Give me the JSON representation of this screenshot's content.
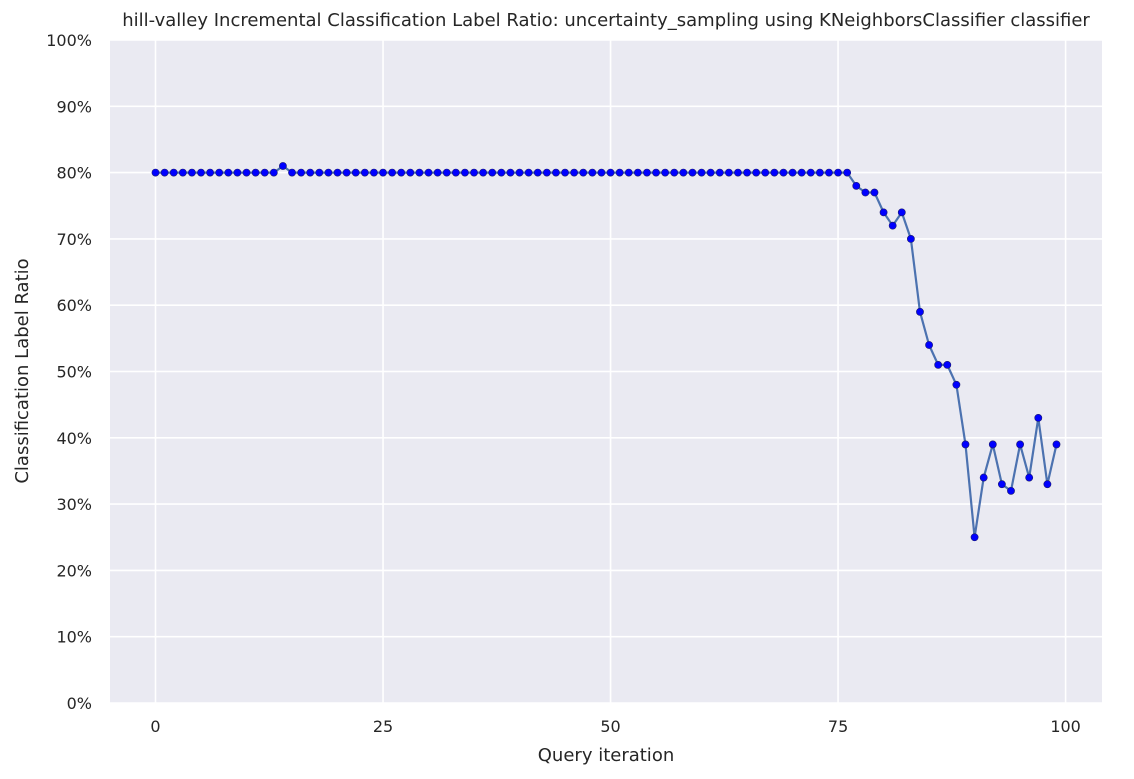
{
  "chart_data": {
    "type": "line",
    "title": "hill-valley Incremental Classification Label Ratio: uncertainty_sampling using KNeighborsClassifier classifier",
    "xlabel": "Query iteration",
    "ylabel": "Classification Label Ratio",
    "xlim": [
      -5,
      104
    ],
    "ylim": [
      0,
      1
    ],
    "xticks": [
      0,
      25,
      50,
      75,
      100
    ],
    "xtick_labels": [
      "0",
      "25",
      "50",
      "75",
      "100"
    ],
    "yticks": [
      0,
      0.1,
      0.2,
      0.3,
      0.4,
      0.5,
      0.6,
      0.7,
      0.8,
      0.9,
      1.0
    ],
    "ytick_labels": [
      "0%",
      "10%",
      "20%",
      "30%",
      "40%",
      "50%",
      "60%",
      "70%",
      "80%",
      "90%",
      "100%"
    ],
    "grid": true,
    "line_color": "#4c72b0",
    "marker_color": "#0000ff",
    "background_color": "#eaeaf2",
    "x": [
      0,
      1,
      2,
      3,
      4,
      5,
      6,
      7,
      8,
      9,
      10,
      11,
      12,
      13,
      14,
      15,
      16,
      17,
      18,
      19,
      20,
      21,
      22,
      23,
      24,
      25,
      26,
      27,
      28,
      29,
      30,
      31,
      32,
      33,
      34,
      35,
      36,
      37,
      38,
      39,
      40,
      41,
      42,
      43,
      44,
      45,
      46,
      47,
      48,
      49,
      50,
      51,
      52,
      53,
      54,
      55,
      56,
      57,
      58,
      59,
      60,
      61,
      62,
      63,
      64,
      65,
      66,
      67,
      68,
      69,
      70,
      71,
      72,
      73,
      74,
      75,
      76,
      77,
      78,
      79,
      80,
      81,
      82,
      83,
      84,
      85,
      86,
      87,
      88,
      89,
      90,
      91,
      92,
      93,
      94,
      95,
      96,
      97,
      98,
      99
    ],
    "y": [
      0.8,
      0.8,
      0.8,
      0.8,
      0.8,
      0.8,
      0.8,
      0.8,
      0.8,
      0.8,
      0.8,
      0.8,
      0.8,
      0.8,
      0.81,
      0.8,
      0.8,
      0.8,
      0.8,
      0.8,
      0.8,
      0.8,
      0.8,
      0.8,
      0.8,
      0.8,
      0.8,
      0.8,
      0.8,
      0.8,
      0.8,
      0.8,
      0.8,
      0.8,
      0.8,
      0.8,
      0.8,
      0.8,
      0.8,
      0.8,
      0.8,
      0.8,
      0.8,
      0.8,
      0.8,
      0.8,
      0.8,
      0.8,
      0.8,
      0.8,
      0.8,
      0.8,
      0.8,
      0.8,
      0.8,
      0.8,
      0.8,
      0.8,
      0.8,
      0.8,
      0.8,
      0.8,
      0.8,
      0.8,
      0.8,
      0.8,
      0.8,
      0.8,
      0.8,
      0.8,
      0.8,
      0.8,
      0.8,
      0.8,
      0.8,
      0.8,
      0.8,
      0.78,
      0.77,
      0.77,
      0.74,
      0.72,
      0.74,
      0.7,
      0.59,
      0.54,
      0.51,
      0.51,
      0.48,
      0.39,
      0.25,
      0.34,
      0.39,
      0.33,
      0.32,
      0.39,
      0.34,
      0.43,
      0.33,
      0.39
    ]
  }
}
